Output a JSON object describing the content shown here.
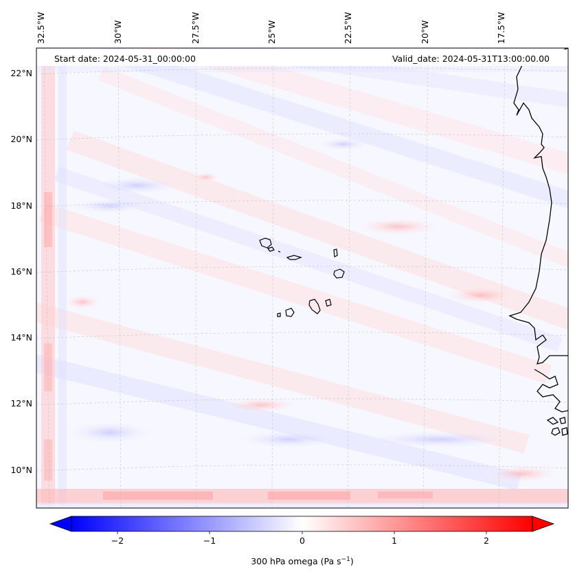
{
  "map": {
    "header": {
      "start_date": "Start date: 2024-05-31_00:00:00",
      "valid_date": "Valid_date: 2024-05-31T13:00:00.00"
    },
    "longitude_labels": [
      "32.5°W",
      "30°W",
      "27.5°W",
      "25°W",
      "22.5°W",
      "20°W",
      "17.5°W"
    ],
    "latitude_labels": [
      "22°N",
      "20°N",
      "18°N",
      "16°N",
      "14°N",
      "12°N",
      "10°N"
    ],
    "features": [
      "Cape Verde islands",
      "West African coastline"
    ],
    "colors": {
      "negative": "#0000ff",
      "zero": "#ffffff",
      "positive": "#ff0000",
      "coastline": "#000000",
      "gridline": "#b8b8b8"
    }
  },
  "colorbar": {
    "label": "300 hPa omega (Pa s",
    "label_sup": "−1",
    "label_close": ")",
    "ticks": [
      "−2",
      "−1",
      "0",
      "1",
      "2"
    ],
    "tick_values": [
      -2,
      -1,
      0,
      1,
      2
    ],
    "range": [
      -2.5,
      2.5
    ],
    "extend": "both",
    "colormap": "bwr"
  }
}
